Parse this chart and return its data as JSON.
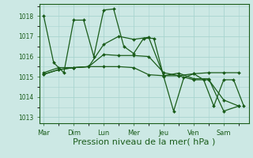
{
  "background_color": "#cce8e4",
  "grid_color": "#a8d4cf",
  "line_color": "#1a5c1a",
  "xlabel": "Pression niveau de la mer( hPa )",
  "xlabel_fontsize": 8,
  "ylim": [
    1012.7,
    1018.6
  ],
  "yticks": [
    1013,
    1014,
    1015,
    1016,
    1017,
    1018
  ],
  "xtick_labels": [
    "Mar",
    "Dim",
    "Lun",
    "Mer",
    "Jeu",
    "Ven",
    "Sam"
  ],
  "xtick_pos": [
    0,
    1,
    2,
    3,
    4,
    5,
    6
  ],
  "xlim": [
    -0.15,
    6.85
  ],
  "line1_x": [
    0,
    0.33,
    0.67,
    1.0,
    1.33,
    1.67,
    2.0,
    2.33,
    2.67,
    3.0,
    3.33,
    3.67,
    4.0,
    4.33,
    4.67,
    5.0,
    5.33,
    5.67,
    6.0,
    6.33,
    6.67
  ],
  "line1_y": [
    1018.0,
    1015.7,
    1015.2,
    1017.8,
    1017.8,
    1016.0,
    1018.3,
    1018.35,
    1016.5,
    1016.15,
    1016.9,
    1016.9,
    1015.0,
    1013.3,
    1014.95,
    1015.15,
    1014.85,
    1013.55,
    1014.85,
    1014.85,
    1013.55
  ],
  "line2_x": [
    0,
    0.5,
    1.0,
    1.5,
    2.0,
    2.5,
    3.0,
    3.5,
    4.0,
    4.5,
    5.0,
    5.5,
    6.0,
    6.5
  ],
  "line2_y": [
    1015.2,
    1015.45,
    1015.45,
    1015.5,
    1015.5,
    1015.5,
    1015.45,
    1015.1,
    1015.05,
    1015.05,
    1015.15,
    1015.2,
    1015.2,
    1015.2
  ],
  "line3_x": [
    0,
    0.5,
    1.0,
    1.5,
    2.0,
    2.5,
    3.0,
    3.5,
    4.0,
    4.5,
    5.0,
    5.5,
    6.0,
    6.5
  ],
  "line3_y": [
    1015.12,
    1015.35,
    1015.45,
    1015.5,
    1016.1,
    1016.05,
    1016.05,
    1016.0,
    1015.2,
    1015.05,
    1014.85,
    1014.85,
    1013.85,
    1013.55
  ],
  "line4_x": [
    0,
    0.5,
    1.0,
    1.5,
    2.0,
    2.5,
    3.0,
    3.5,
    4.0,
    4.5,
    5.0,
    5.5,
    6.0,
    6.5
  ],
  "line4_y": [
    1015.12,
    1015.35,
    1015.45,
    1015.5,
    1016.6,
    1017.0,
    1016.85,
    1016.95,
    1015.05,
    1015.18,
    1014.9,
    1014.9,
    1013.3,
    1013.55
  ]
}
